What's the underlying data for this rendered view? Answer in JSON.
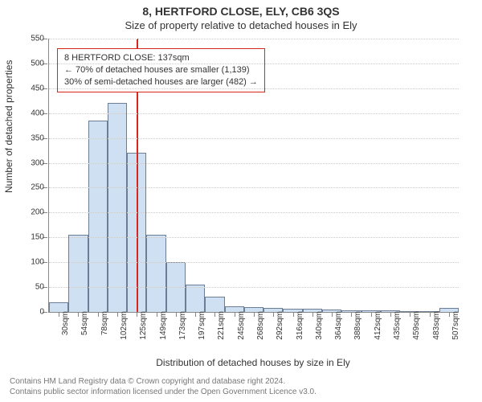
{
  "title_main": "8, HERTFORD CLOSE, ELY, CB6 3QS",
  "title_sub": "Size of property relative to detached houses in Ely",
  "ylabel": "Number of detached properties",
  "xlabel": "Distribution of detached houses by size in Ely",
  "footer_line1": "Contains HM Land Registry data © Crown copyright and database right 2024.",
  "footer_line2": "Contains public sector information licensed under the Open Government Licence v3.0.",
  "chart": {
    "type": "histogram",
    "ylim": [
      0,
      550
    ],
    "ytick_step": 50,
    "background_color": "#ffffff",
    "grid_color": "#cccccc",
    "axis_color": "#888888",
    "bar_fill": "#cfe0f3",
    "bar_stroke": "#6b7e96",
    "refline_color": "#d9261c",
    "anno_border": "#d9261c",
    "title_fontsize": 14,
    "label_fontsize": 12,
    "tick_fontsize": 10,
    "categories": [
      "30sqm",
      "54sqm",
      "78sqm",
      "102sqm",
      "125sqm",
      "149sqm",
      "173sqm",
      "197sqm",
      "221sqm",
      "245sqm",
      "268sqm",
      "292sqm",
      "316sqm",
      "340sqm",
      "364sqm",
      "388sqm",
      "412sqm",
      "435sqm",
      "459sqm",
      "483sqm",
      "507sqm"
    ],
    "values": [
      20,
      155,
      385,
      420,
      320,
      155,
      100,
      55,
      30,
      12,
      9,
      8,
      6,
      6,
      5,
      4,
      3,
      3,
      2,
      2,
      8
    ],
    "refline_index": 4.5,
    "anno_line1": "8 HERTFORD CLOSE: 137sqm",
    "anno_line2": "← 70% of detached houses are smaller (1,139)",
    "anno_line3": "30% of semi-detached houses are larger (482) →"
  }
}
